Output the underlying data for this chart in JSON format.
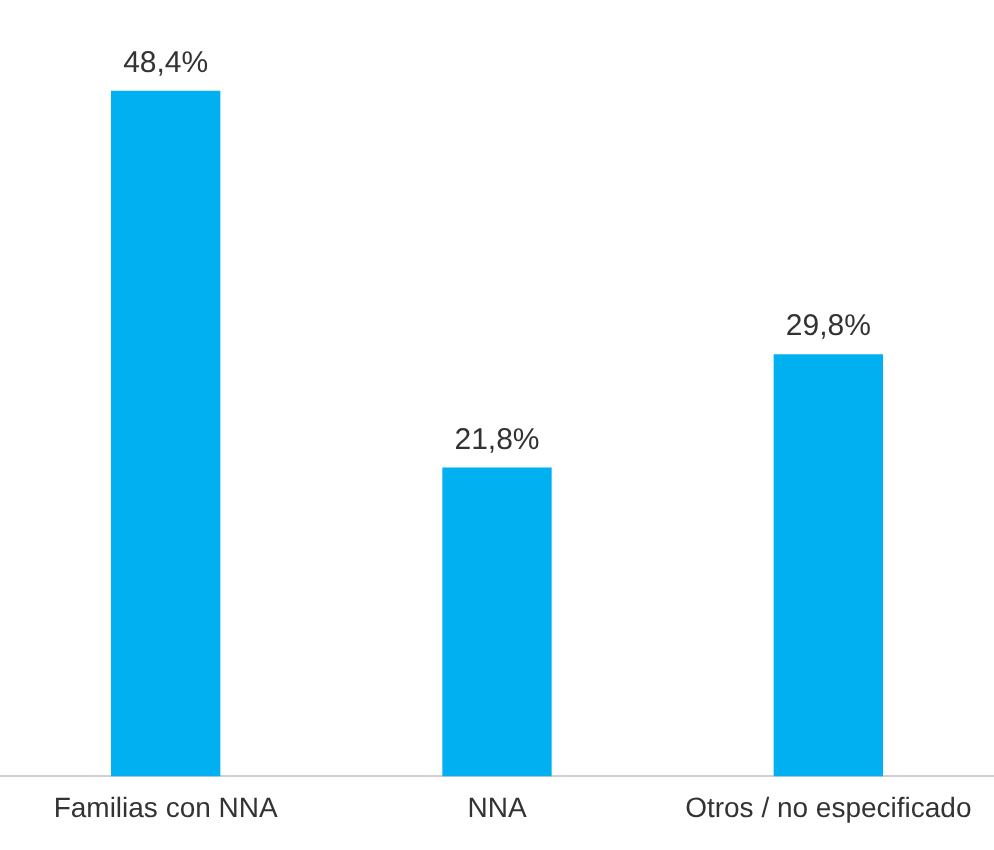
{
  "chart_data": {
    "type": "bar",
    "categories": [
      "Familias con NNA",
      "NNA",
      "Otros / no especificado"
    ],
    "values": [
      48.4,
      21.8,
      29.8
    ],
    "color": "#00b0f0",
    "value_labels": [
      "48,4%",
      "21,8%",
      "29,8%"
    ],
    "grid": false,
    "legend": false
  }
}
